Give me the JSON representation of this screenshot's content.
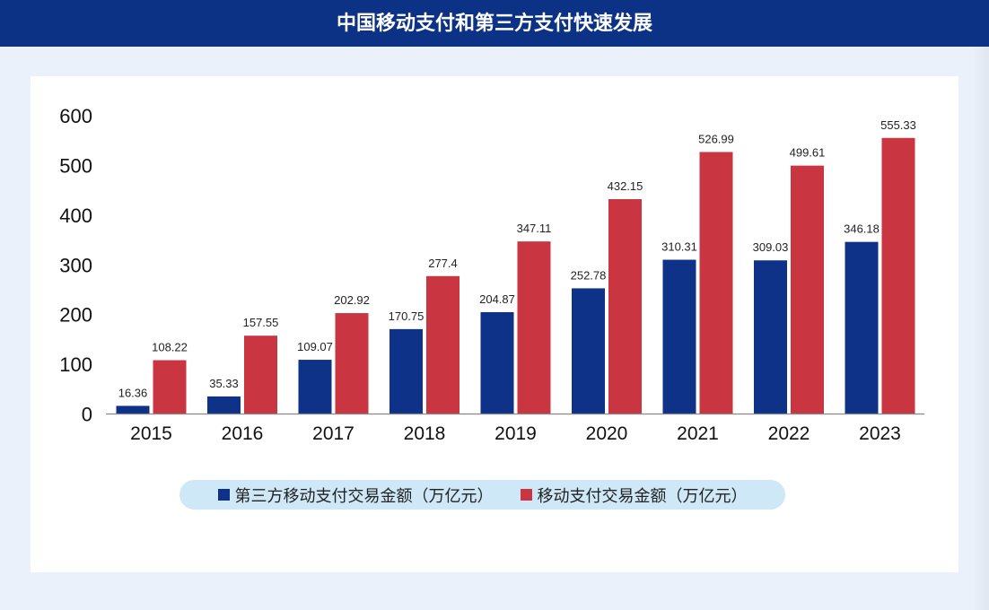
{
  "title": "中国移动支付和第三方支付快速发展",
  "colors": {
    "header": "#0c3285",
    "series1": "#0d3287",
    "series2": "#c93642",
    "legend_bg": "#cfe8f7"
  },
  "chart_data": {
    "type": "bar",
    "title": "中国移动支付和第三方支付快速发展",
    "categories": [
      "2015",
      "2016",
      "2017",
      "2018",
      "2019",
      "2020",
      "2021",
      "2022",
      "2023"
    ],
    "series": [
      {
        "name": "第三方移动支付交易金额（万亿元）",
        "values": [
          16.36,
          35.33,
          109.07,
          170.75,
          204.87,
          252.78,
          310.31,
          309.03,
          346.18
        ],
        "labels": [
          "16.36",
          "35.33",
          "109.07",
          "170.75",
          "204.87",
          "252.78",
          "310.31",
          "309.03",
          "346.18"
        ]
      },
      {
        "name": "移动支付交易金额（万亿元）",
        "values": [
          108.22,
          157.55,
          202.92,
          277.4,
          347.11,
          432.15,
          526.99,
          499.61,
          555.33
        ],
        "labels": [
          "108.22",
          "157.55",
          "202.92",
          "277.4",
          "347.11",
          "432.15",
          "526.99",
          "499.61",
          "555.33"
        ]
      }
    ],
    "yticks": [
      "0",
      "100",
      "200",
      "300",
      "400",
      "500",
      "600"
    ],
    "ylim": [
      0,
      600
    ],
    "grid": false,
    "legend_position": "bottom"
  }
}
